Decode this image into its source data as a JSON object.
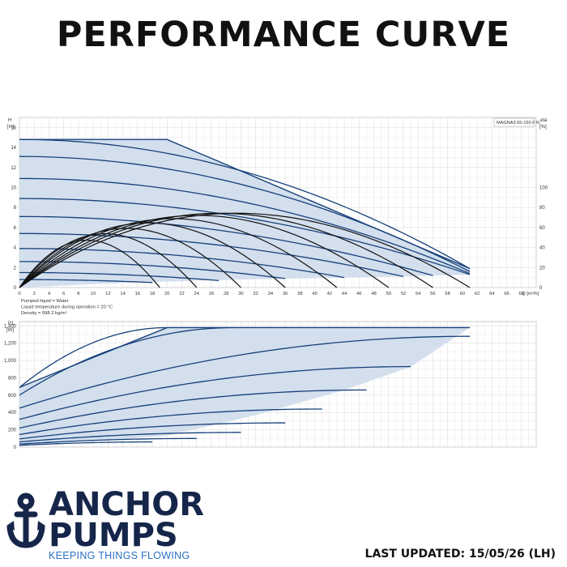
{
  "title": "PERFORMANCE CURVE",
  "footer": {
    "brand_line1": "ANCHOR",
    "brand_line2": "PUMPS",
    "tagline": "KEEPING THINGS FLOWING",
    "last_updated": "LAST UPDATED: 15/05/26 (LH)"
  },
  "colors": {
    "curve": "#16407a",
    "fill": "#d3dfed",
    "eff": "#111111",
    "grid": "#d9d9d9",
    "brand": "#16264a",
    "brand_accent": "#2c6fc4"
  },
  "chart_data": [
    {
      "type": "line",
      "name": "head",
      "model_label": "MAGNA3 65-150 F N",
      "ylabel_left": "H",
      "ylabel_left_unit": "[m]",
      "ylabel_right": "eta",
      "ylabel_right_unit": "[%]",
      "xlabel": "Q [m³/h]",
      "xlim": [
        0,
        70
      ],
      "ylim": [
        0,
        17
      ],
      "x_ticks": [
        0,
        2,
        4,
        6,
        8,
        10,
        12,
        14,
        16,
        18,
        20,
        22,
        24,
        26,
        28,
        30,
        32,
        34,
        36,
        38,
        40,
        42,
        44,
        46,
        48,
        50,
        52,
        54,
        56,
        58,
        60,
        62,
        64,
        66,
        68
      ],
      "y_ticks": [
        0,
        2,
        4,
        6,
        8,
        10,
        12,
        14,
        16
      ],
      "eta_ticks": [
        0,
        20,
        40,
        60,
        80,
        100
      ],
      "eta_range": [
        0,
        100
      ],
      "notes": [
        "Pumped liquid = Water",
        "Liquid temperature during operation = 20 °C",
        "Density = 998.2 kg/m³"
      ],
      "envelope": [
        [
          0,
          14.8
        ],
        [
          20,
          14.8
        ],
        [
          61,
          1.9
        ],
        [
          61,
          1.3
        ],
        [
          52,
          1.1
        ],
        [
          44,
          1.0
        ],
        [
          30,
          0.8
        ],
        [
          15,
          0.5
        ],
        [
          0,
          0
        ]
      ],
      "curves": [
        {
          "h0": 14.8,
          "q_end": 61,
          "h_end": 1.9
        },
        {
          "h0": 13.1,
          "q_end": 61,
          "h_end": 1.6
        },
        {
          "h0": 10.9,
          "q_end": 61,
          "h_end": 1.4
        },
        {
          "h0": 8.9,
          "q_end": 61,
          "h_end": 1.3
        },
        {
          "h0": 7.1,
          "q_end": 56,
          "h_end": 1.2
        },
        {
          "h0": 5.4,
          "q_end": 52,
          "h_end": 1.1
        },
        {
          "h0": 3.9,
          "q_end": 44,
          "h_end": 1.0
        },
        {
          "h0": 2.6,
          "q_end": 36,
          "h_end": 0.9
        },
        {
          "h0": 1.5,
          "q_end": 27,
          "h_end": 0.7
        },
        {
          "h0": 0.8,
          "q_end": 18,
          "h_end": 0.5
        }
      ],
      "eta_curves": [
        {
          "q_end": 56,
          "eta_peak": 69
        },
        {
          "q_end": 61,
          "eta_peak": 69
        },
        {
          "q_end": 50,
          "eta_peak": 67
        },
        {
          "q_end": 43,
          "eta_peak": 64
        },
        {
          "q_end": 36,
          "eta_peak": 60
        },
        {
          "q_end": 30,
          "eta_peak": 55
        },
        {
          "q_end": 24,
          "eta_peak": 50
        },
        {
          "q_end": 19,
          "eta_peak": 44
        }
      ]
    },
    {
      "type": "line",
      "name": "power",
      "ylabel": "P1",
      "ylabel_unit": "[W]",
      "xlim": [
        0,
        70
      ],
      "ylim": [
        0,
        1450
      ],
      "y_ticks": [
        0,
        200,
        400,
        600,
        800,
        1000,
        1200,
        1400
      ],
      "y_tick_labels": [
        "0",
        "200",
        "400",
        "600",
        "800",
        "1,000",
        "1,200",
        "1,400"
      ],
      "envelope": [
        [
          0,
          690
        ],
        [
          20,
          1380
        ],
        [
          61,
          1380
        ],
        [
          53,
          930
        ],
        [
          44,
          660
        ],
        [
          32,
          370
        ],
        [
          20,
          130
        ],
        [
          0,
          20
        ]
      ],
      "curves": [
        {
          "p0": 690,
          "q_end": 20,
          "p_end": 1380
        },
        {
          "p0": 600,
          "q_end": 29,
          "p_end": 1380
        },
        {
          "p0": 450,
          "q_end": 61,
          "p_end": 1280
        },
        {
          "p0": 320,
          "q_end": 53,
          "p_end": 930
        },
        {
          "p0": 220,
          "q_end": 47,
          "p_end": 660
        },
        {
          "p0": 145,
          "q_end": 41,
          "p_end": 440
        },
        {
          "p0": 95,
          "q_end": 36,
          "p_end": 280
        },
        {
          "p0": 60,
          "q_end": 30,
          "p_end": 170
        },
        {
          "p0": 35,
          "q_end": 24,
          "p_end": 100
        },
        {
          "p0": 20,
          "q_end": 18,
          "p_end": 60
        }
      ]
    }
  ]
}
